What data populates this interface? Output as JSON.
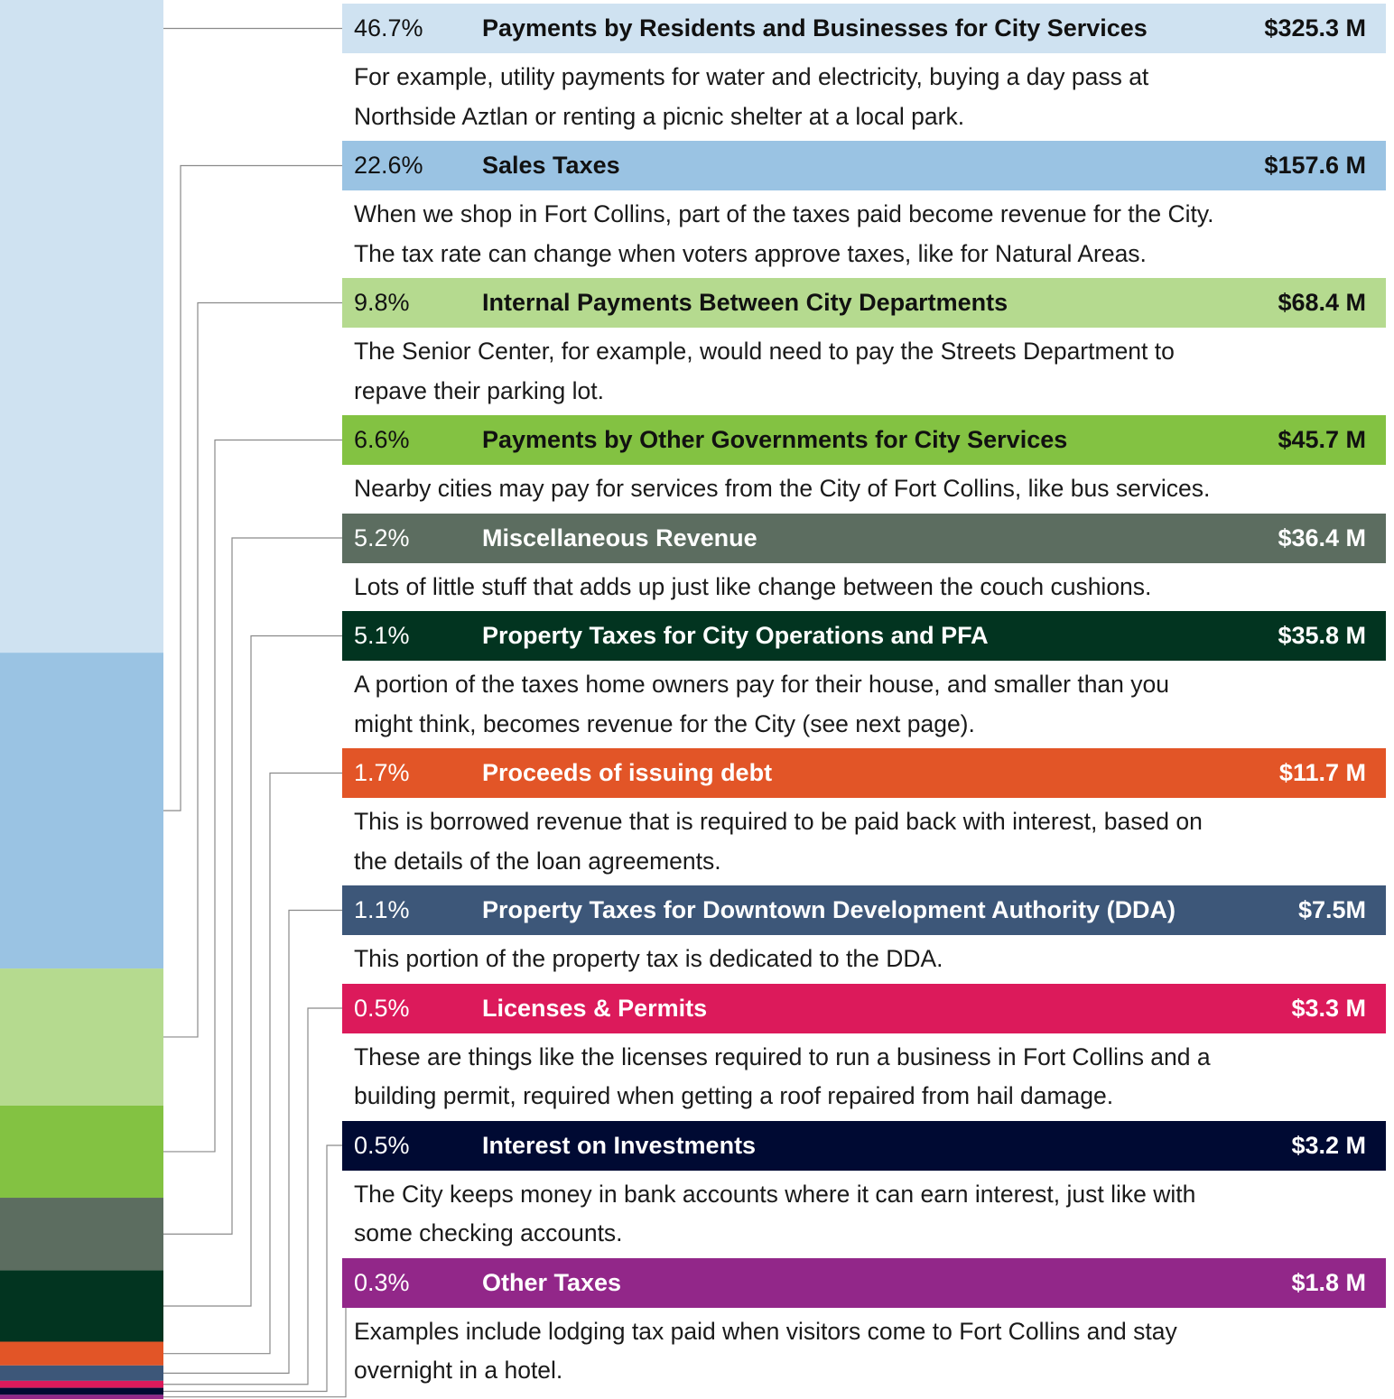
{
  "chart_data": {
    "type": "stacked-column",
    "categories": [
      "Payments by Residents and Businesses for City Services",
      "Sales Taxes",
      "Internal Payments Between City Departments",
      "Payments by Other Governments for City Services",
      "Miscellaneous Revenue",
      "Property Taxes for City Operations and PFA",
      "Proceeds of issuing debt",
      "Property Taxes for Downtown Development Authority (DDA)",
      "Licenses & Permits",
      "Interest on Investments",
      "Other Taxes"
    ],
    "values": [
      46.7,
      22.6,
      9.8,
      6.6,
      5.2,
      5.1,
      1.7,
      1.1,
      0.5,
      0.5,
      0.3
    ],
    "value_labels": [
      "46.7%",
      "22.6%",
      "9.8%",
      "6.6%",
      "5.2%",
      "5.1%",
      "1.7%",
      "1.1%",
      "0.5%",
      "0.5%",
      "0.3%"
    ],
    "amounts": [
      "$325.3 M",
      "$157.6 M",
      "$68.4 M",
      "$45.7 M",
      "$36.4 M",
      "$35.8 M",
      "$11.7 M",
      "$7.5M",
      "$3.3 M",
      "$3.2 M",
      "$1.8 M"
    ],
    "descriptions": [
      [
        "For example, utility payments for water and electricity, buying a day pass at",
        "Northside Aztlan or renting a picnic shelter at a local park."
      ],
      [
        "When we shop in Fort Collins, part of the taxes paid become revenue for the City.",
        "The tax rate can change when voters approve taxes, like for Natural Areas."
      ],
      [
        "The Senior Center, for example, would need to pay the Streets Department to",
        "repave their parking lot."
      ],
      [
        "Nearby cities may pay for services from the City of Fort Collins, like bus services."
      ],
      [
        "Lots of little stuff that adds up just like change between the couch cushions."
      ],
      [
        "A portion of the taxes home owners pay for their house, and smaller than you",
        "might think, becomes revenue for the City (see next page)."
      ],
      [
        "This is borrowed revenue that is required to be paid back with interest, based on",
        "the details of the loan agreements."
      ],
      [
        "This portion of the property tax is dedicated to the DDA."
      ],
      [
        "These are things like the licenses required to run a business in Fort Collins and a",
        "building permit, required when getting a roof repaired from hail damage."
      ],
      [
        "The City keeps money in bank accounts where it can earn interest, just like with",
        "some checking accounts."
      ],
      [
        "Examples include lodging tax paid when visitors come to Fort Collins and stay",
        "overnight in a hotel."
      ]
    ],
    "colors": [
      "#cfe2f1",
      "#9ac3e3",
      "#b5da8f",
      "#83c242",
      "#5c6d60",
      "#023420",
      "#e25527",
      "#3d5779",
      "#dc1a5b",
      "#000a33",
      "#922789"
    ],
    "header_text_colors": [
      "#111111",
      "#111111",
      "#111111",
      "#111111",
      "#ffffff",
      "#ffffff",
      "#ffffff",
      "#ffffff",
      "#ffffff",
      "#ffffff",
      "#ffffff"
    ]
  }
}
